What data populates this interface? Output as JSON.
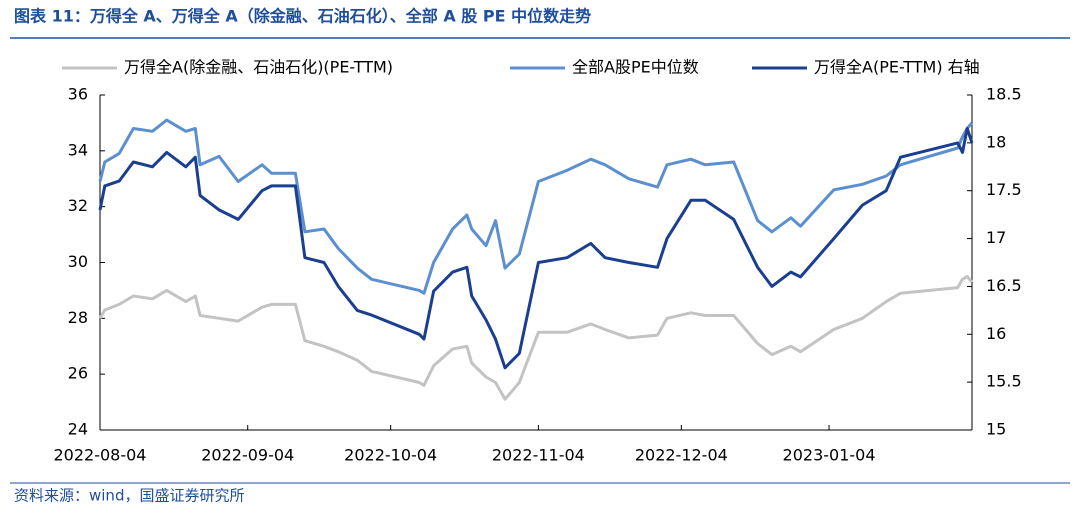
{
  "chart_data": {
    "type": "line",
    "title": "图表 11：万得全 A、万得全 A（除金融、石油石化）、全部 A 股 PE 中位数走势",
    "source": "资料来源：wind，国盛证券研究所",
    "x": [
      "2022-08-04",
      "2022-08-05",
      "2022-08-08",
      "2022-08-11",
      "2022-08-15",
      "2022-08-18",
      "2022-08-22",
      "2022-08-24",
      "2022-08-25",
      "2022-08-29",
      "2022-09-02",
      "2022-09-07",
      "2022-09-09",
      "2022-09-14",
      "2022-09-16",
      "2022-09-20",
      "2022-09-23",
      "2022-09-27",
      "2022-09-30",
      "2022-10-10",
      "2022-10-11",
      "2022-10-13",
      "2022-10-17",
      "2022-10-20",
      "2022-10-21",
      "2022-10-24",
      "2022-10-26",
      "2022-10-28",
      "2022-10-31",
      "2022-11-04",
      "2022-11-10",
      "2022-11-15",
      "2022-11-18",
      "2022-11-23",
      "2022-11-29",
      "2022-12-01",
      "2022-12-06",
      "2022-12-09",
      "2022-12-15",
      "2022-12-20",
      "2022-12-23",
      "2022-12-27",
      "2022-12-29",
      "2023-01-05",
      "2023-01-11",
      "2023-01-16",
      "2023-01-19",
      "2023-01-31",
      "2023-02-01",
      "2023-02-02",
      "2023-02-03"
    ],
    "series": [
      {
        "name": "万得全A(除金融、石油石化)(PE-TTM)",
        "color": "#c3c3c3",
        "axis": "y",
        "values": [
          28.0,
          28.3,
          28.5,
          28.8,
          28.7,
          29.0,
          28.6,
          28.8,
          28.1,
          28.0,
          27.9,
          28.4,
          28.5,
          28.5,
          27.2,
          27.0,
          26.8,
          26.5,
          26.1,
          25.7,
          25.6,
          26.3,
          26.9,
          27.0,
          26.4,
          25.9,
          25.7,
          25.1,
          25.7,
          27.5,
          27.5,
          27.8,
          27.6,
          27.3,
          27.4,
          28.0,
          28.2,
          28.1,
          28.1,
          27.1,
          26.7,
          27.0,
          26.8,
          27.6,
          28.0,
          28.6,
          28.9,
          29.1,
          29.4,
          29.5,
          29.3
        ]
      },
      {
        "name": "全部A股PE中位数",
        "color": "#5b8fd0",
        "axis": "y",
        "values": [
          32.9,
          33.6,
          33.9,
          34.8,
          34.7,
          35.1,
          34.7,
          34.8,
          33.5,
          33.8,
          32.9,
          33.5,
          33.2,
          33.2,
          31.1,
          31.2,
          30.5,
          29.8,
          29.4,
          29.0,
          28.9,
          30.0,
          31.2,
          31.7,
          31.2,
          30.6,
          31.5,
          29.8,
          30.3,
          32.9,
          33.3,
          33.7,
          33.5,
          33.0,
          32.7,
          33.5,
          33.7,
          33.5,
          33.6,
          31.5,
          31.1,
          31.6,
          31.3,
          32.6,
          32.8,
          33.1,
          33.5,
          34.1,
          34.5,
          34.8,
          35.0
        ]
      },
      {
        "name": "万得全A(PE-TTM) 右轴",
        "color": "#1b3f8f",
        "axis": "y2",
        "values": [
          17.3,
          17.55,
          17.6,
          17.8,
          17.75,
          17.9,
          17.75,
          17.85,
          17.45,
          17.3,
          17.2,
          17.5,
          17.55,
          17.55,
          16.8,
          16.75,
          16.5,
          16.25,
          16.2,
          16.0,
          15.95,
          16.45,
          16.65,
          16.7,
          16.4,
          16.15,
          15.95,
          15.65,
          15.8,
          16.75,
          16.8,
          16.95,
          16.8,
          16.75,
          16.7,
          17.0,
          17.4,
          17.4,
          17.2,
          16.7,
          16.5,
          16.65,
          16.6,
          17.0,
          17.35,
          17.5,
          17.85,
          18.0,
          17.9,
          18.15,
          18.0
        ]
      }
    ],
    "xlim": [
      "2022-08-04",
      "2023-02-03"
    ],
    "xticks": [
      "2022-08-04",
      "2022-09-04",
      "2022-10-04",
      "2022-11-04",
      "2022-12-04",
      "2023-01-04"
    ],
    "ylim": [
      24,
      36
    ],
    "yticks": [
      24,
      26,
      28,
      30,
      32,
      34,
      36
    ],
    "y2lim": [
      15,
      18.5
    ],
    "y2ticks": [
      15,
      15.5,
      16,
      16.5,
      17,
      17.5,
      18,
      18.5
    ],
    "grid": false
  }
}
